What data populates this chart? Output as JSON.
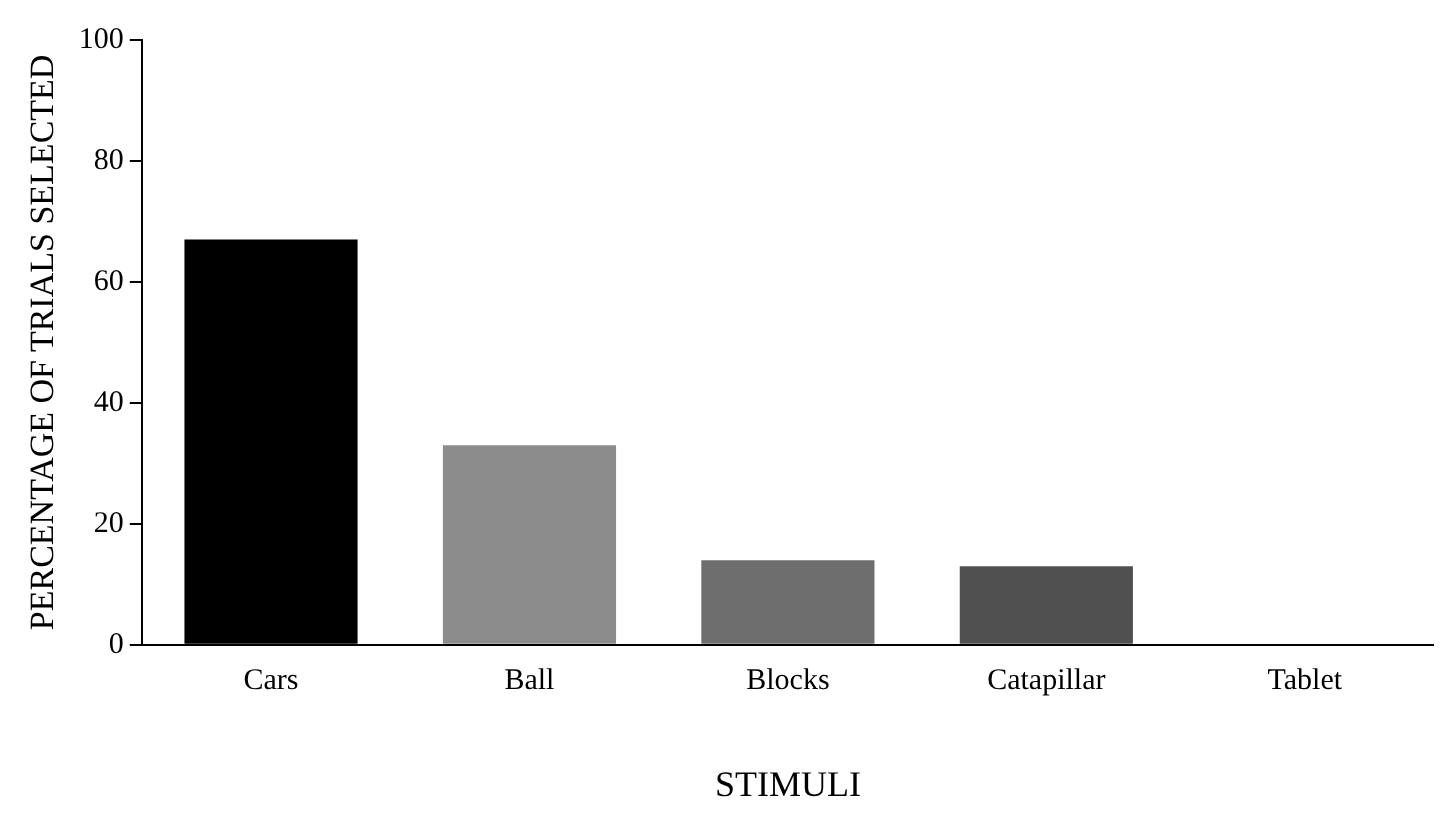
{
  "chart_data": {
    "type": "bar",
    "xlabel": "STIMULI",
    "ylabel": "PERCENTAGE OF TRIALS SELECTED",
    "categories": [
      "Cars",
      "Ball",
      "Blocks",
      "Catapillar",
      "Tablet"
    ],
    "values": [
      67,
      33,
      14,
      13,
      0
    ],
    "colors": [
      "#000000",
      "#8c8c8c",
      "#6e6e6e",
      "#505050",
      "#000000"
    ],
    "ylim": [
      0,
      100
    ],
    "yticks": [
      0,
      20,
      40,
      60,
      80,
      100
    ],
    "grid": false,
    "legend": false
  }
}
